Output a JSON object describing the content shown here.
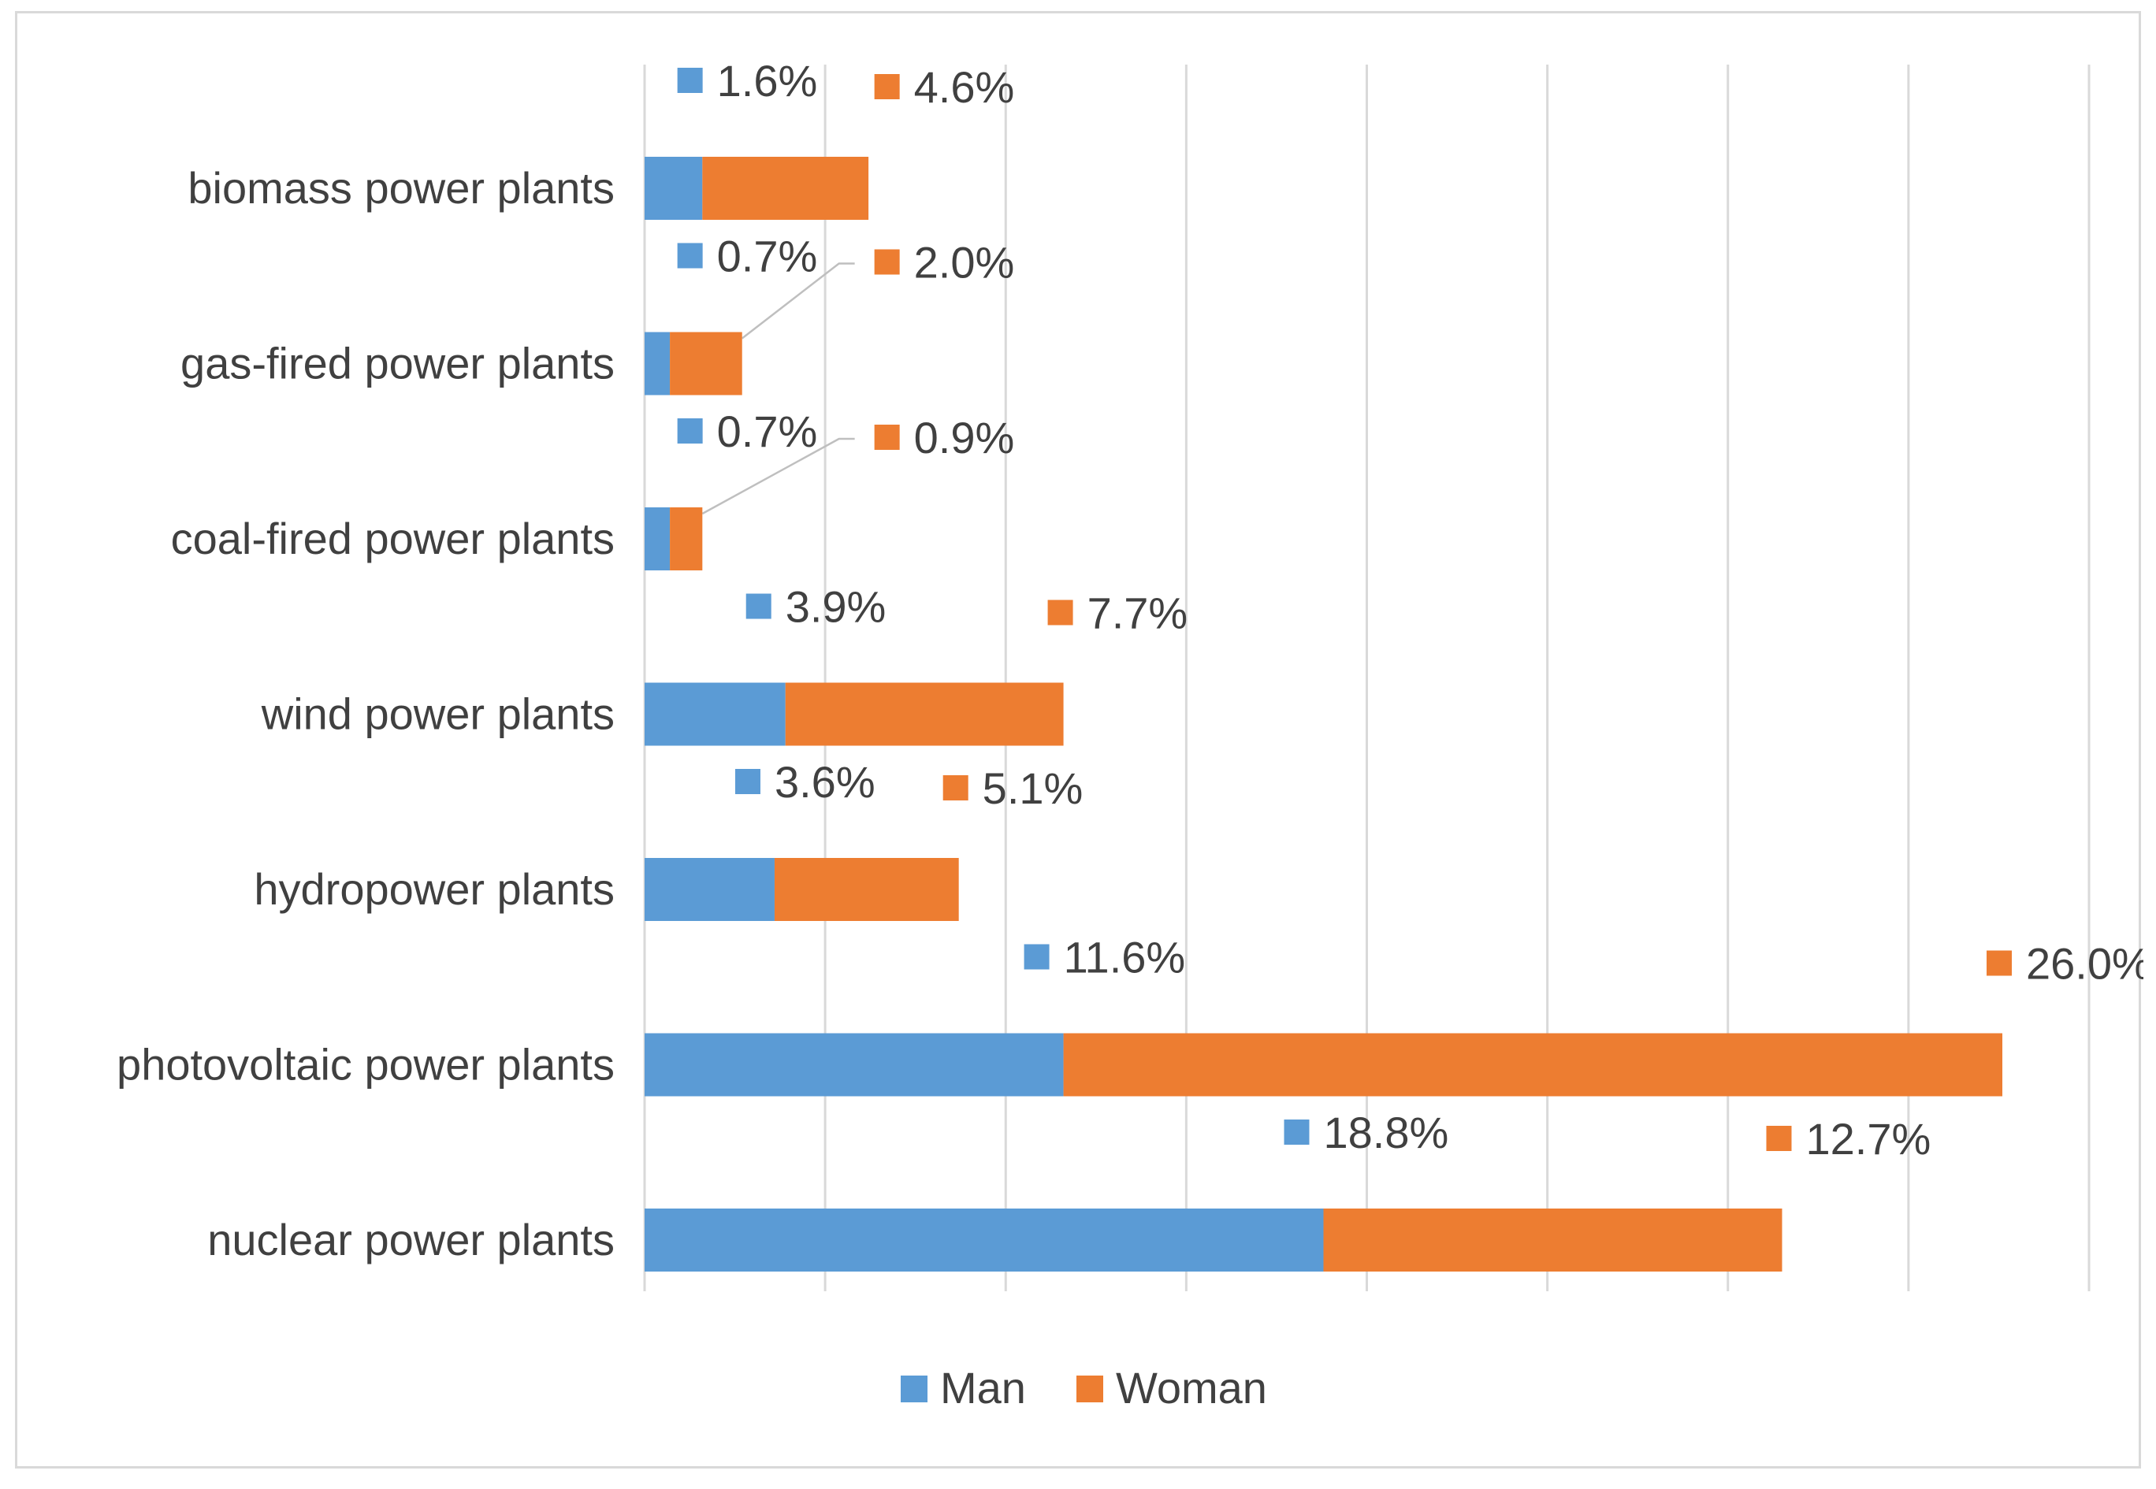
{
  "chart_data": {
    "type": "bar",
    "orientation": "horizontal",
    "stacked": true,
    "categories": [
      "biomass power plants",
      "gas-fired power plants",
      "coal-fired power plants",
      "wind power plants",
      "hydropower plants",
      "photovoltaic power plants",
      "nuclear power plants"
    ],
    "series": [
      {
        "name": "Man",
        "color": "#5B9BD5",
        "values": [
          1.6,
          0.7,
          0.7,
          3.9,
          3.6,
          11.6,
          18.8
        ],
        "labels": [
          "1.6%",
          "0.7%",
          "0.7%",
          "3.9%",
          "3.6%",
          "11.6%",
          "18.8%"
        ]
      },
      {
        "name": "Woman",
        "color": "#ED7D31",
        "values": [
          4.6,
          2.0,
          0.9,
          7.7,
          5.1,
          26.0,
          12.7
        ],
        "labels": [
          "4.6%",
          "2.0%",
          "0.9%",
          "7.7%",
          "5.1%",
          "26.0%",
          "12.7%"
        ]
      }
    ],
    "xlim": [
      0,
      40
    ],
    "x_grid_step": 5,
    "grid": true,
    "tick_labels_shown": false,
    "legend": {
      "position": "bottom",
      "entries": [
        "Man",
        "Woman"
      ]
    },
    "title": "",
    "xlabel": "",
    "ylabel": ""
  }
}
